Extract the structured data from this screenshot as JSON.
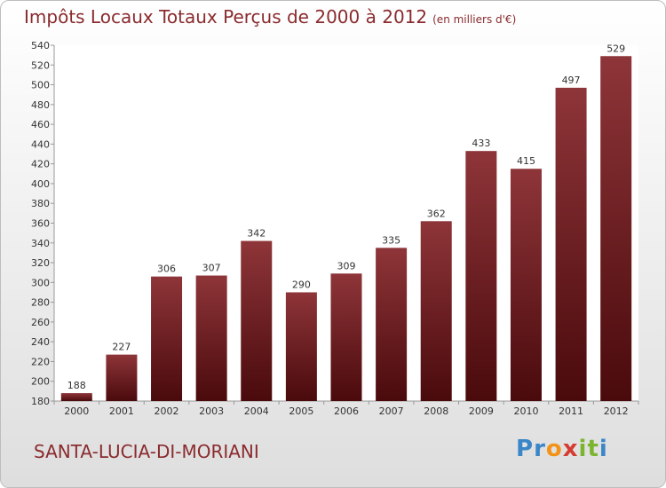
{
  "title": "Impôts Locaux Totaux Perçus de 2000 à 2012",
  "subtitle": "(en milliers d'€)",
  "town": "SANTA-LUCIA-DI-MORIANI",
  "logo": {
    "letters": [
      "P",
      "r",
      "o",
      "x",
      "i",
      "t",
      "i"
    ],
    "colors": [
      "#3a86c8",
      "#3a86c8",
      "#f29318",
      "#d63b2f",
      "#7bb530",
      "#7bb530",
      "#3a86c8"
    ]
  },
  "colors": {
    "bar_top": "#8e3539",
    "bar_bottom": "#4a0a0c",
    "title": "#8a2b2e"
  },
  "chart_data": {
    "type": "bar",
    "categories": [
      "2000",
      "2001",
      "2002",
      "2003",
      "2004",
      "2005",
      "2006",
      "2007",
      "2008",
      "2009",
      "2010",
      "2011",
      "2012"
    ],
    "values": [
      188,
      227,
      306,
      307,
      342,
      290,
      309,
      335,
      362,
      433,
      415,
      497,
      529
    ],
    "ylim": [
      180,
      540
    ],
    "yticks": [
      180,
      200,
      220,
      240,
      260,
      280,
      300,
      320,
      340,
      360,
      380,
      400,
      420,
      440,
      460,
      480,
      500,
      520,
      540
    ],
    "grid": false
  }
}
